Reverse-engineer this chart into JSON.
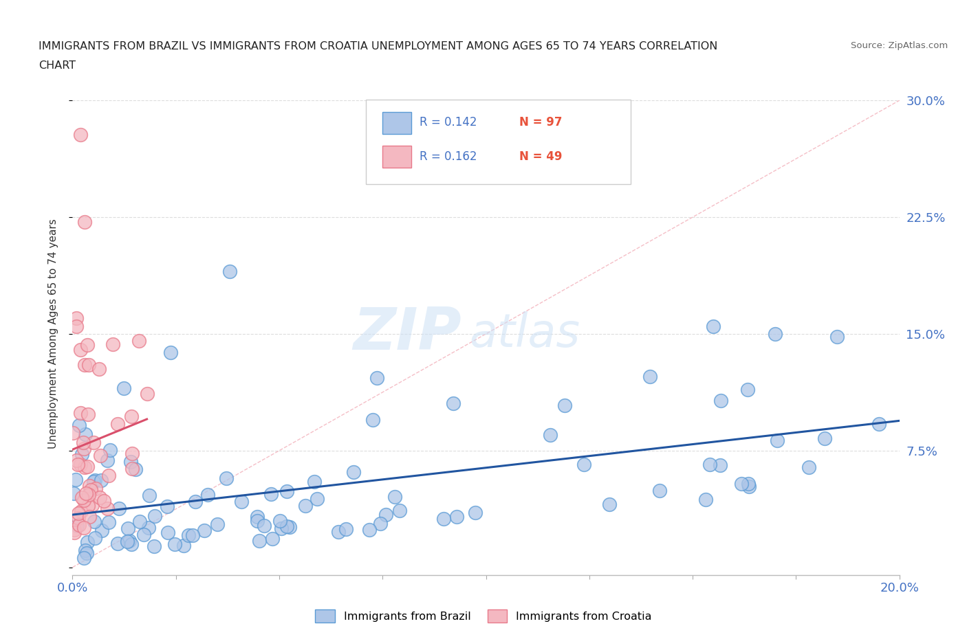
{
  "title_line1": "IMMIGRANTS FROM BRAZIL VS IMMIGRANTS FROM CROATIA UNEMPLOYMENT AMONG AGES 65 TO 74 YEARS CORRELATION",
  "title_line2": "CHART",
  "source": "Source: ZipAtlas.com",
  "ylabel": "Unemployment Among Ages 65 to 74 years",
  "xlim": [
    0.0,
    0.2
  ],
  "ylim": [
    -0.005,
    0.305
  ],
  "brazil_color": "#aec6e8",
  "brazil_edge": "#5b9bd5",
  "croatia_color": "#f4b8c1",
  "croatia_edge": "#e87a8a",
  "brazil_line_color": "#2155a0",
  "croatia_line_color": "#d94f6b",
  "ref_line_color": "#f4b8c1",
  "watermark_zip": "#c5d8f0",
  "watermark_atlas": "#c5d8f0",
  "background_color": "#ffffff",
  "grid_color": "#dddddd",
  "legend_r_color": "#4472c4",
  "legend_n_color": "#e8523a",
  "brazil_seed": 42,
  "croatia_seed": 7
}
